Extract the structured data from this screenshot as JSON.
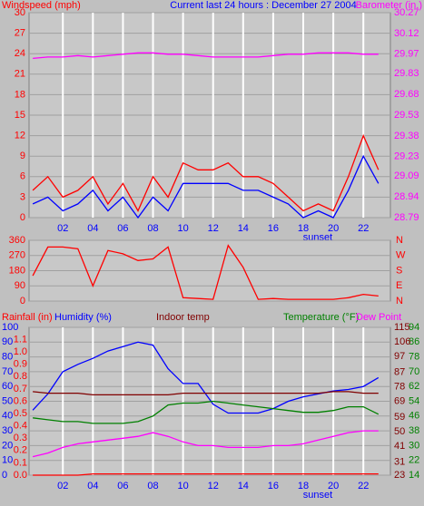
{
  "chart_data": [
    {
      "type": "line",
      "title": "Current last 24 hours : December 27 2004",
      "ylabel": "Windspeed (mph)",
      "y2label": "Barometer (in.)",
      "ycolor": "#ff0000",
      "y2color": "#ff00ff",
      "annotations": [
        "sunset"
      ],
      "x": [
        0,
        1,
        2,
        3,
        4,
        5,
        6,
        7,
        8,
        9,
        10,
        11,
        12,
        13,
        14,
        15,
        16,
        17,
        18,
        19,
        20,
        21,
        22,
        23
      ],
      "xlim": [
        -0.25,
        23.8
      ],
      "xticks": [
        {
          "value": 2,
          "label": "02"
        },
        {
          "value": 4,
          "label": "04"
        },
        {
          "value": 6,
          "label": "06"
        },
        {
          "value": 8,
          "label": "08"
        },
        10,
        12,
        14,
        16,
        18,
        20,
        22
      ],
      "ylim": [
        0,
        30
      ],
      "yticks": [
        0,
        3,
        6,
        9,
        12,
        15,
        18,
        21,
        24,
        27,
        30
      ],
      "y2lim": [
        28.79,
        30.27
      ],
      "y2ticks": [
        28.79,
        28.94,
        29.09,
        29.23,
        29.38,
        29.53,
        29.68,
        29.83,
        29.97,
        30.12,
        30.27
      ],
      "grid": true,
      "series": [
        {
          "color": "#ff0000",
          "values": [
            4,
            6,
            3,
            4,
            6,
            2,
            5,
            1,
            6,
            3,
            8,
            7,
            7,
            8,
            6,
            6,
            5,
            3,
            1,
            2,
            1,
            6,
            12,
            7
          ]
        },
        {
          "color": "#0000ff",
          "values": [
            2,
            3,
            1,
            2,
            4,
            1,
            3,
            0,
            3,
            1,
            5,
            5,
            5,
            5,
            4,
            4,
            3,
            2,
            0,
            1,
            0,
            4,
            9,
            5
          ]
        },
        {
          "color": "#ff00ff",
          "axis": "y2",
          "values": [
            29.94,
            29.95,
            29.95,
            29.96,
            29.95,
            29.96,
            29.97,
            29.98,
            29.98,
            29.97,
            29.97,
            29.96,
            29.95,
            29.95,
            29.95,
            29.95,
            29.96,
            29.97,
            29.97,
            29.98,
            29.98,
            29.98,
            29.97,
            29.97
          ]
        }
      ]
    },
    {
      "type": "line",
      "ycolor": "#ff0000",
      "y2color": "#ff0000",
      "x": [
        0,
        1,
        2,
        3,
        4,
        5,
        6,
        7,
        8,
        9,
        10,
        11,
        12,
        13,
        14,
        15,
        16,
        17,
        18,
        19,
        20,
        21,
        22,
        23
      ],
      "xlim": [
        -0.25,
        23.8
      ],
      "ylim": [
        0,
        360
      ],
      "yticks": [
        0,
        90,
        180,
        270,
        360
      ],
      "y2lim": [
        0,
        360
      ],
      "y2ticks": [
        {
          "value": 0,
          "label": "N"
        },
        {
          "value": 90,
          "label": "E"
        },
        {
          "value": 180,
          "label": "S"
        },
        {
          "value": 270,
          "label": "W"
        },
        {
          "value": 360,
          "label": "N"
        }
      ],
      "grid": true,
      "series": [
        {
          "color": "#ff0000",
          "values": [
            150,
            320,
            320,
            310,
            90,
            300,
            280,
            240,
            250,
            320,
            20,
            15,
            10,
            330,
            200,
            10,
            15,
            10,
            10,
            10,
            10,
            20,
            40,
            30
          ]
        }
      ]
    },
    {
      "type": "line",
      "annotations": [
        "sunset"
      ],
      "ycolor": "#0000ff",
      "y2color": "#008000",
      "y3color": "#ff0000",
      "y4color": "#800000",
      "y2label": "Temperature (°F)",
      "y3label": "Rainfall (in)",
      "x": [
        0,
        1,
        2,
        3,
        4,
        5,
        6,
        7,
        8,
        9,
        10,
        11,
        12,
        13,
        14,
        15,
        16,
        17,
        18,
        19,
        20,
        21,
        22,
        23
      ],
      "xlim": [
        -0.25,
        23.8
      ],
      "xticks": [
        {
          "value": 2,
          "label": "02"
        },
        {
          "value": 4,
          "label": "04"
        },
        {
          "value": 6,
          "label": "06"
        },
        {
          "value": 8,
          "label": "08"
        },
        10,
        12,
        14,
        16,
        18,
        20,
        22
      ],
      "ylim": [
        0,
        100
      ],
      "yticks": [
        0,
        10,
        20,
        30,
        40,
        50,
        60,
        70,
        80,
        90,
        100
      ],
      "y2lim": [
        14,
        94
      ],
      "y2ticks": [
        14,
        22,
        30,
        38,
        46,
        54,
        62,
        70,
        78,
        86,
        94
      ],
      "y3lim": [
        0,
        1.2
      ],
      "y3ticks": [
        {
          "value": 0,
          "label": "0.0"
        },
        0.1,
        0.2,
        0.3,
        0.4,
        0.5,
        0.6,
        0.7,
        0.8,
        0.9,
        {
          "value": 1,
          "label": "1.0"
        },
        1.1
      ],
      "y4lim": [
        23,
        115
      ],
      "y4ticks": [
        23,
        31,
        41,
        50,
        59,
        69,
        78,
        87,
        97,
        106,
        115
      ],
      "grid": true,
      "series": [
        {
          "name": "Humidity (%)",
          "color": "#0000ff",
          "values": [
            44,
            55,
            70,
            75,
            79,
            84,
            87,
            90,
            88,
            72,
            62,
            62,
            48,
            42,
            42,
            42,
            45,
            50,
            53,
            55,
            57,
            58,
            60,
            66
          ]
        },
        {
          "name": "Indoor temp",
          "color": "#800000",
          "axis": "y4",
          "values": [
            75,
            74,
            74,
            74,
            73,
            73,
            73,
            73,
            73,
            73,
            74,
            74,
            74,
            74,
            74,
            74,
            74,
            74,
            74,
            74,
            75,
            75,
            74,
            74
          ]
        },
        {
          "color": "#008000",
          "axis": "y2",
          "values": [
            45,
            44,
            43,
            43,
            42,
            42,
            42,
            43,
            46,
            52,
            53,
            53,
            54,
            53,
            52,
            51,
            50,
            49,
            48,
            48,
            49,
            51,
            51,
            47
          ]
        },
        {
          "name": "Dew Point",
          "color": "#ff00ff",
          "axis": "y2",
          "values": [
            24,
            26,
            29,
            31,
            32,
            33,
            34,
            35,
            37,
            35,
            32,
            30,
            30,
            29,
            29,
            29,
            30,
            30,
            31,
            33,
            35,
            37,
            38,
            38
          ]
        },
        {
          "color": "#ff0000",
          "axis": "y3",
          "values": [
            0,
            0,
            0,
            0,
            0.01,
            0.01,
            0.01,
            0.01,
            0.01,
            0.01,
            0.01,
            0.01,
            0.01,
            0.01,
            0.01,
            0.01,
            0.01,
            0.01,
            0.01,
            0.01,
            0.01,
            0.01,
            0.01,
            0.01
          ]
        }
      ]
    }
  ]
}
